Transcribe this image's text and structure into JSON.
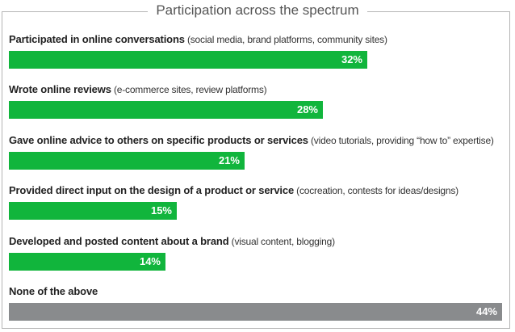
{
  "chart_data": {
    "type": "bar",
    "orientation": "horizontal",
    "title": "Participation across the spectrum",
    "xlim": [
      0,
      44
    ],
    "categories": [
      {
        "label": "Participated in online conversations",
        "note": "(social media, brand platforms, community sites)",
        "value": 32,
        "value_label": "32%",
        "color": "#11b53c"
      },
      {
        "label": "Wrote online reviews",
        "note": "(e-commerce sites, review platforms)",
        "value": 28,
        "value_label": "28%",
        "color": "#11b53c"
      },
      {
        "label": "Gave online advice to others on specific products or services",
        "note": "(video tutorials, providing “how to” expertise)",
        "value": 21,
        "value_label": "21%",
        "color": "#11b53c"
      },
      {
        "label": "Provided direct input on the design of a product or service",
        "note": "(cocreation, contests for ideas/designs)",
        "value": 15,
        "value_label": "15%",
        "color": "#11b53c"
      },
      {
        "label": "Developed and posted content about a brand",
        "note": "(visual content, blogging)",
        "value": 14,
        "value_label": "14%",
        "color": "#11b53c"
      },
      {
        "label": "None of the above",
        "note": "",
        "value": 44,
        "value_label": "44%",
        "color": "#898b8d"
      }
    ]
  }
}
